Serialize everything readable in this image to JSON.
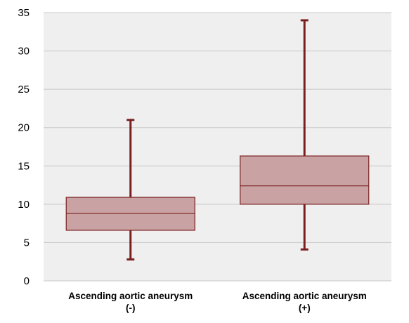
{
  "chart_data": {
    "type": "boxplot",
    "title": "",
    "xlabel": "",
    "ylabel": "",
    "ylim": [
      0,
      35
    ],
    "yticks": [
      "0",
      "5",
      "10",
      "15",
      "20",
      "25",
      "30",
      "35"
    ],
    "grid": true,
    "categories": [
      {
        "line1": "Ascending aortic aneurysm",
        "line2": "(-)"
      },
      {
        "line1": "Ascending aortic aneurysm",
        "line2": "(+)"
      }
    ],
    "boxes": [
      {
        "min": 2.8,
        "q1": 6.6,
        "median": 8.8,
        "q3": 10.9,
        "max": 21.0
      },
      {
        "min": 4.1,
        "q1": 10.0,
        "median": 12.4,
        "q3": 16.3,
        "max": 34.0
      }
    ],
    "colors": {
      "plot_background": "#efefef",
      "grid": "#c8c8c8",
      "box_fill": "#c9a3a3",
      "box_stroke": "#7a1f1f",
      "whisker": "#7a1f1f"
    }
  }
}
